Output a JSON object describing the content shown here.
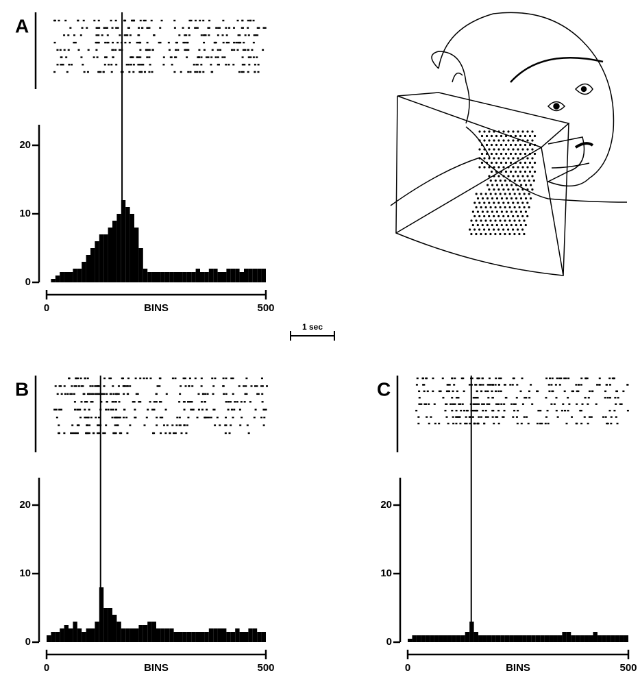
{
  "chart_data": [
    {
      "type": "histogram",
      "label": "A",
      "xlabel": "BINS",
      "color": "#000000",
      "bins": [
        0,
        10,
        20,
        30,
        40,
        50,
        60,
        70,
        80,
        90,
        100,
        110,
        120,
        130,
        140,
        150,
        160,
        170,
        180,
        190,
        200,
        210,
        220,
        230,
        240,
        250,
        260,
        270,
        280,
        290,
        300,
        310,
        320,
        330,
        340,
        350,
        360,
        370,
        380,
        390,
        400,
        410,
        420,
        430,
        440,
        450,
        460,
        470,
        480,
        490,
        500
      ],
      "values": [
        0,
        0.5,
        1,
        1.5,
        1.5,
        1.5,
        2,
        2,
        3,
        4,
        5,
        6,
        7,
        7,
        8,
        9,
        10,
        12,
        11,
        10,
        8,
        5,
        2,
        1.5,
        1.5,
        1.5,
        1.5,
        1.5,
        1.5,
        1.5,
        1.5,
        1.5,
        1.5,
        1.5,
        2,
        1.5,
        1.5,
        2,
        2,
        1.5,
        1.5,
        2,
        2,
        2,
        1.5,
        2,
        2,
        2,
        2,
        2
      ],
      "stimulus_bin": 172,
      "xlim": [
        0,
        500
      ],
      "xticks": [
        0,
        500
      ],
      "ylim": [
        0,
        23
      ],
      "yticks": [
        0,
        10,
        20
      ]
    },
    {
      "type": "histogram",
      "label": "B",
      "xlabel": "BINS",
      "color": "#000000",
      "bins": [
        0,
        10,
        20,
        30,
        40,
        50,
        60,
        70,
        80,
        90,
        100,
        110,
        120,
        130,
        140,
        150,
        160,
        170,
        180,
        190,
        200,
        210,
        220,
        230,
        240,
        250,
        260,
        270,
        280,
        290,
        300,
        310,
        320,
        330,
        340,
        350,
        360,
        370,
        380,
        390,
        400,
        410,
        420,
        430,
        440,
        450,
        460,
        470,
        480,
        490,
        500
      ],
      "values": [
        1,
        1.5,
        1.5,
        2,
        2.5,
        2,
        3,
        2,
        1.5,
        2,
        2,
        3,
        8,
        5,
        5,
        4,
        3,
        2,
        2,
        2,
        2,
        2.5,
        2.5,
        3,
        3,
        2,
        2,
        2,
        2,
        1.5,
        1.5,
        1.5,
        1.5,
        1.5,
        1.5,
        1.5,
        1.5,
        2,
        2,
        2,
        2,
        1.5,
        1.5,
        2,
        1.5,
        1.5,
        2,
        2,
        1.5,
        1.5
      ],
      "stimulus_bin": 123,
      "xlim": [
        0,
        500
      ],
      "xticks": [
        0,
        500
      ],
      "ylim": [
        0,
        24
      ],
      "yticks": [
        0,
        10,
        20
      ]
    },
    {
      "type": "histogram",
      "label": "C",
      "xlabel": "BINS",
      "color": "#000000",
      "bins": [
        0,
        10,
        20,
        30,
        40,
        50,
        60,
        70,
        80,
        90,
        100,
        110,
        120,
        130,
        140,
        150,
        160,
        170,
        180,
        190,
        200,
        210,
        220,
        230,
        240,
        250,
        260,
        270,
        280,
        290,
        300,
        310,
        320,
        330,
        340,
        350,
        360,
        370,
        380,
        390,
        400,
        410,
        420,
        430,
        440,
        450,
        460,
        470,
        480,
        490,
        500
      ],
      "values": [
        0.5,
        1,
        1,
        1,
        1,
        1,
        1,
        1,
        1,
        1,
        1,
        1,
        1,
        1.5,
        3,
        1.5,
        1,
        1,
        1,
        1,
        1,
        1,
        1,
        1,
        1,
        1,
        1,
        1,
        1,
        1,
        1,
        1,
        1,
        1,
        1,
        1.5,
        1.5,
        1,
        1,
        1,
        1,
        1,
        1.5,
        1,
        1,
        1,
        1,
        1,
        1,
        1
      ],
      "stimulus_bin": 144,
      "xlim": [
        0,
        500
      ],
      "xticks": [
        0,
        500
      ],
      "ylim": [
        0,
        24
      ],
      "yticks": [
        0,
        10,
        20
      ]
    }
  ],
  "scale_bar": "1 sec"
}
